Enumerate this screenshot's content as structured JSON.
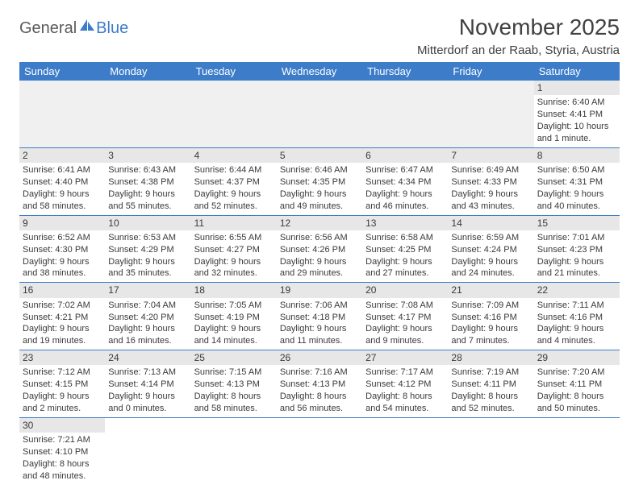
{
  "logo": {
    "text1": "General",
    "text2": "Blue"
  },
  "title": "November 2025",
  "location": "Mitterdorf an der Raab, Styria, Austria",
  "colors": {
    "header_bg": "#3d7cc9",
    "header_text": "#ffffff",
    "daynum_bg": "#e7e7e7",
    "empty_bg": "#f0f0f0",
    "border": "#3d7cc9",
    "text": "#3a3a3a",
    "title_text": "#404040",
    "logo_gray": "#5b5b5b",
    "logo_blue": "#3d7cc9"
  },
  "weekdays": [
    "Sunday",
    "Monday",
    "Tuesday",
    "Wednesday",
    "Thursday",
    "Friday",
    "Saturday"
  ],
  "weeks": [
    [
      null,
      null,
      null,
      null,
      null,
      null,
      {
        "n": "1",
        "sr": "Sunrise: 6:40 AM",
        "ss": "Sunset: 4:41 PM",
        "dl1": "Daylight: 10 hours",
        "dl2": "and 1 minute."
      }
    ],
    [
      {
        "n": "2",
        "sr": "Sunrise: 6:41 AM",
        "ss": "Sunset: 4:40 PM",
        "dl1": "Daylight: 9 hours",
        "dl2": "and 58 minutes."
      },
      {
        "n": "3",
        "sr": "Sunrise: 6:43 AM",
        "ss": "Sunset: 4:38 PM",
        "dl1": "Daylight: 9 hours",
        "dl2": "and 55 minutes."
      },
      {
        "n": "4",
        "sr": "Sunrise: 6:44 AM",
        "ss": "Sunset: 4:37 PM",
        "dl1": "Daylight: 9 hours",
        "dl2": "and 52 minutes."
      },
      {
        "n": "5",
        "sr": "Sunrise: 6:46 AM",
        "ss": "Sunset: 4:35 PM",
        "dl1": "Daylight: 9 hours",
        "dl2": "and 49 minutes."
      },
      {
        "n": "6",
        "sr": "Sunrise: 6:47 AM",
        "ss": "Sunset: 4:34 PM",
        "dl1": "Daylight: 9 hours",
        "dl2": "and 46 minutes."
      },
      {
        "n": "7",
        "sr": "Sunrise: 6:49 AM",
        "ss": "Sunset: 4:33 PM",
        "dl1": "Daylight: 9 hours",
        "dl2": "and 43 minutes."
      },
      {
        "n": "8",
        "sr": "Sunrise: 6:50 AM",
        "ss": "Sunset: 4:31 PM",
        "dl1": "Daylight: 9 hours",
        "dl2": "and 40 minutes."
      }
    ],
    [
      {
        "n": "9",
        "sr": "Sunrise: 6:52 AM",
        "ss": "Sunset: 4:30 PM",
        "dl1": "Daylight: 9 hours",
        "dl2": "and 38 minutes."
      },
      {
        "n": "10",
        "sr": "Sunrise: 6:53 AM",
        "ss": "Sunset: 4:29 PM",
        "dl1": "Daylight: 9 hours",
        "dl2": "and 35 minutes."
      },
      {
        "n": "11",
        "sr": "Sunrise: 6:55 AM",
        "ss": "Sunset: 4:27 PM",
        "dl1": "Daylight: 9 hours",
        "dl2": "and 32 minutes."
      },
      {
        "n": "12",
        "sr": "Sunrise: 6:56 AM",
        "ss": "Sunset: 4:26 PM",
        "dl1": "Daylight: 9 hours",
        "dl2": "and 29 minutes."
      },
      {
        "n": "13",
        "sr": "Sunrise: 6:58 AM",
        "ss": "Sunset: 4:25 PM",
        "dl1": "Daylight: 9 hours",
        "dl2": "and 27 minutes."
      },
      {
        "n": "14",
        "sr": "Sunrise: 6:59 AM",
        "ss": "Sunset: 4:24 PM",
        "dl1": "Daylight: 9 hours",
        "dl2": "and 24 minutes."
      },
      {
        "n": "15",
        "sr": "Sunrise: 7:01 AM",
        "ss": "Sunset: 4:23 PM",
        "dl1": "Daylight: 9 hours",
        "dl2": "and 21 minutes."
      }
    ],
    [
      {
        "n": "16",
        "sr": "Sunrise: 7:02 AM",
        "ss": "Sunset: 4:21 PM",
        "dl1": "Daylight: 9 hours",
        "dl2": "and 19 minutes."
      },
      {
        "n": "17",
        "sr": "Sunrise: 7:04 AM",
        "ss": "Sunset: 4:20 PM",
        "dl1": "Daylight: 9 hours",
        "dl2": "and 16 minutes."
      },
      {
        "n": "18",
        "sr": "Sunrise: 7:05 AM",
        "ss": "Sunset: 4:19 PM",
        "dl1": "Daylight: 9 hours",
        "dl2": "and 14 minutes."
      },
      {
        "n": "19",
        "sr": "Sunrise: 7:06 AM",
        "ss": "Sunset: 4:18 PM",
        "dl1": "Daylight: 9 hours",
        "dl2": "and 11 minutes."
      },
      {
        "n": "20",
        "sr": "Sunrise: 7:08 AM",
        "ss": "Sunset: 4:17 PM",
        "dl1": "Daylight: 9 hours",
        "dl2": "and 9 minutes."
      },
      {
        "n": "21",
        "sr": "Sunrise: 7:09 AM",
        "ss": "Sunset: 4:16 PM",
        "dl1": "Daylight: 9 hours",
        "dl2": "and 7 minutes."
      },
      {
        "n": "22",
        "sr": "Sunrise: 7:11 AM",
        "ss": "Sunset: 4:16 PM",
        "dl1": "Daylight: 9 hours",
        "dl2": "and 4 minutes."
      }
    ],
    [
      {
        "n": "23",
        "sr": "Sunrise: 7:12 AM",
        "ss": "Sunset: 4:15 PM",
        "dl1": "Daylight: 9 hours",
        "dl2": "and 2 minutes."
      },
      {
        "n": "24",
        "sr": "Sunrise: 7:13 AM",
        "ss": "Sunset: 4:14 PM",
        "dl1": "Daylight: 9 hours",
        "dl2": "and 0 minutes."
      },
      {
        "n": "25",
        "sr": "Sunrise: 7:15 AM",
        "ss": "Sunset: 4:13 PM",
        "dl1": "Daylight: 8 hours",
        "dl2": "and 58 minutes."
      },
      {
        "n": "26",
        "sr": "Sunrise: 7:16 AM",
        "ss": "Sunset: 4:13 PM",
        "dl1": "Daylight: 8 hours",
        "dl2": "and 56 minutes."
      },
      {
        "n": "27",
        "sr": "Sunrise: 7:17 AM",
        "ss": "Sunset: 4:12 PM",
        "dl1": "Daylight: 8 hours",
        "dl2": "and 54 minutes."
      },
      {
        "n": "28",
        "sr": "Sunrise: 7:19 AM",
        "ss": "Sunset: 4:11 PM",
        "dl1": "Daylight: 8 hours",
        "dl2": "and 52 minutes."
      },
      {
        "n": "29",
        "sr": "Sunrise: 7:20 AM",
        "ss": "Sunset: 4:11 PM",
        "dl1": "Daylight: 8 hours",
        "dl2": "and 50 minutes."
      }
    ],
    [
      {
        "n": "30",
        "sr": "Sunrise: 7:21 AM",
        "ss": "Sunset: 4:10 PM",
        "dl1": "Daylight: 8 hours",
        "dl2": "and 48 minutes."
      },
      null,
      null,
      null,
      null,
      null,
      null
    ]
  ]
}
